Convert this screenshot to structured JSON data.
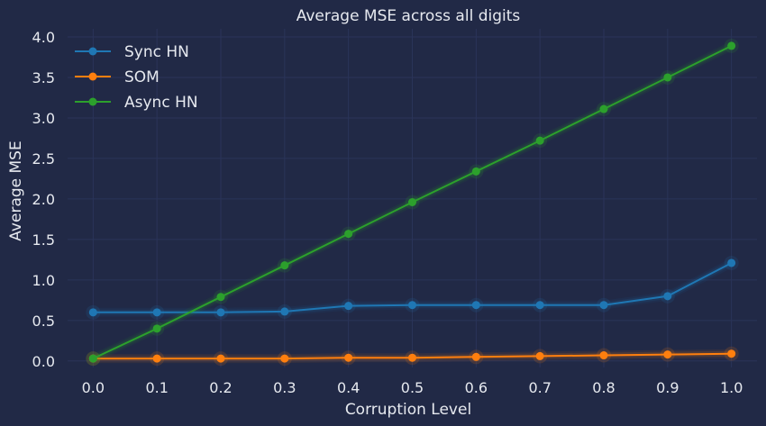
{
  "chart_data": {
    "type": "line",
    "title": "Average MSE across all digits",
    "xlabel": "Corruption Level",
    "ylabel": "Average MSE",
    "x": [
      0.0,
      0.1,
      0.2,
      0.3,
      0.4,
      0.5,
      0.6,
      0.7,
      0.8,
      0.9,
      1.0
    ],
    "x_ticks": [
      "0.0",
      "0.1",
      "0.2",
      "0.3",
      "0.4",
      "0.5",
      "0.6",
      "0.7",
      "0.8",
      "0.9",
      "1.0"
    ],
    "y_ticks": [
      "0.0",
      "0.5",
      "1.0",
      "1.5",
      "2.0",
      "2.5",
      "3.0",
      "3.5",
      "4.0"
    ],
    "xlim": [
      -0.04,
      1.04
    ],
    "ylim": [
      -0.08,
      4.1
    ],
    "grid": true,
    "legend_position": "top-left",
    "series": [
      {
        "name": "Sync HN",
        "color": "#1f77b4",
        "values": [
          0.6,
          0.6,
          0.6,
          0.61,
          0.68,
          0.69,
          0.69,
          0.69,
          0.69,
          0.8,
          1.21
        ]
      },
      {
        "name": "SOM",
        "color": "#ff7f0e",
        "values": [
          0.03,
          0.03,
          0.03,
          0.03,
          0.04,
          0.04,
          0.05,
          0.06,
          0.07,
          0.08,
          0.09
        ]
      },
      {
        "name": "Async HN",
        "color": "#2ca02c",
        "values": [
          0.03,
          0.4,
          0.79,
          1.18,
          1.57,
          1.96,
          2.34,
          2.72,
          3.11,
          3.5,
          3.89
        ]
      }
    ]
  }
}
